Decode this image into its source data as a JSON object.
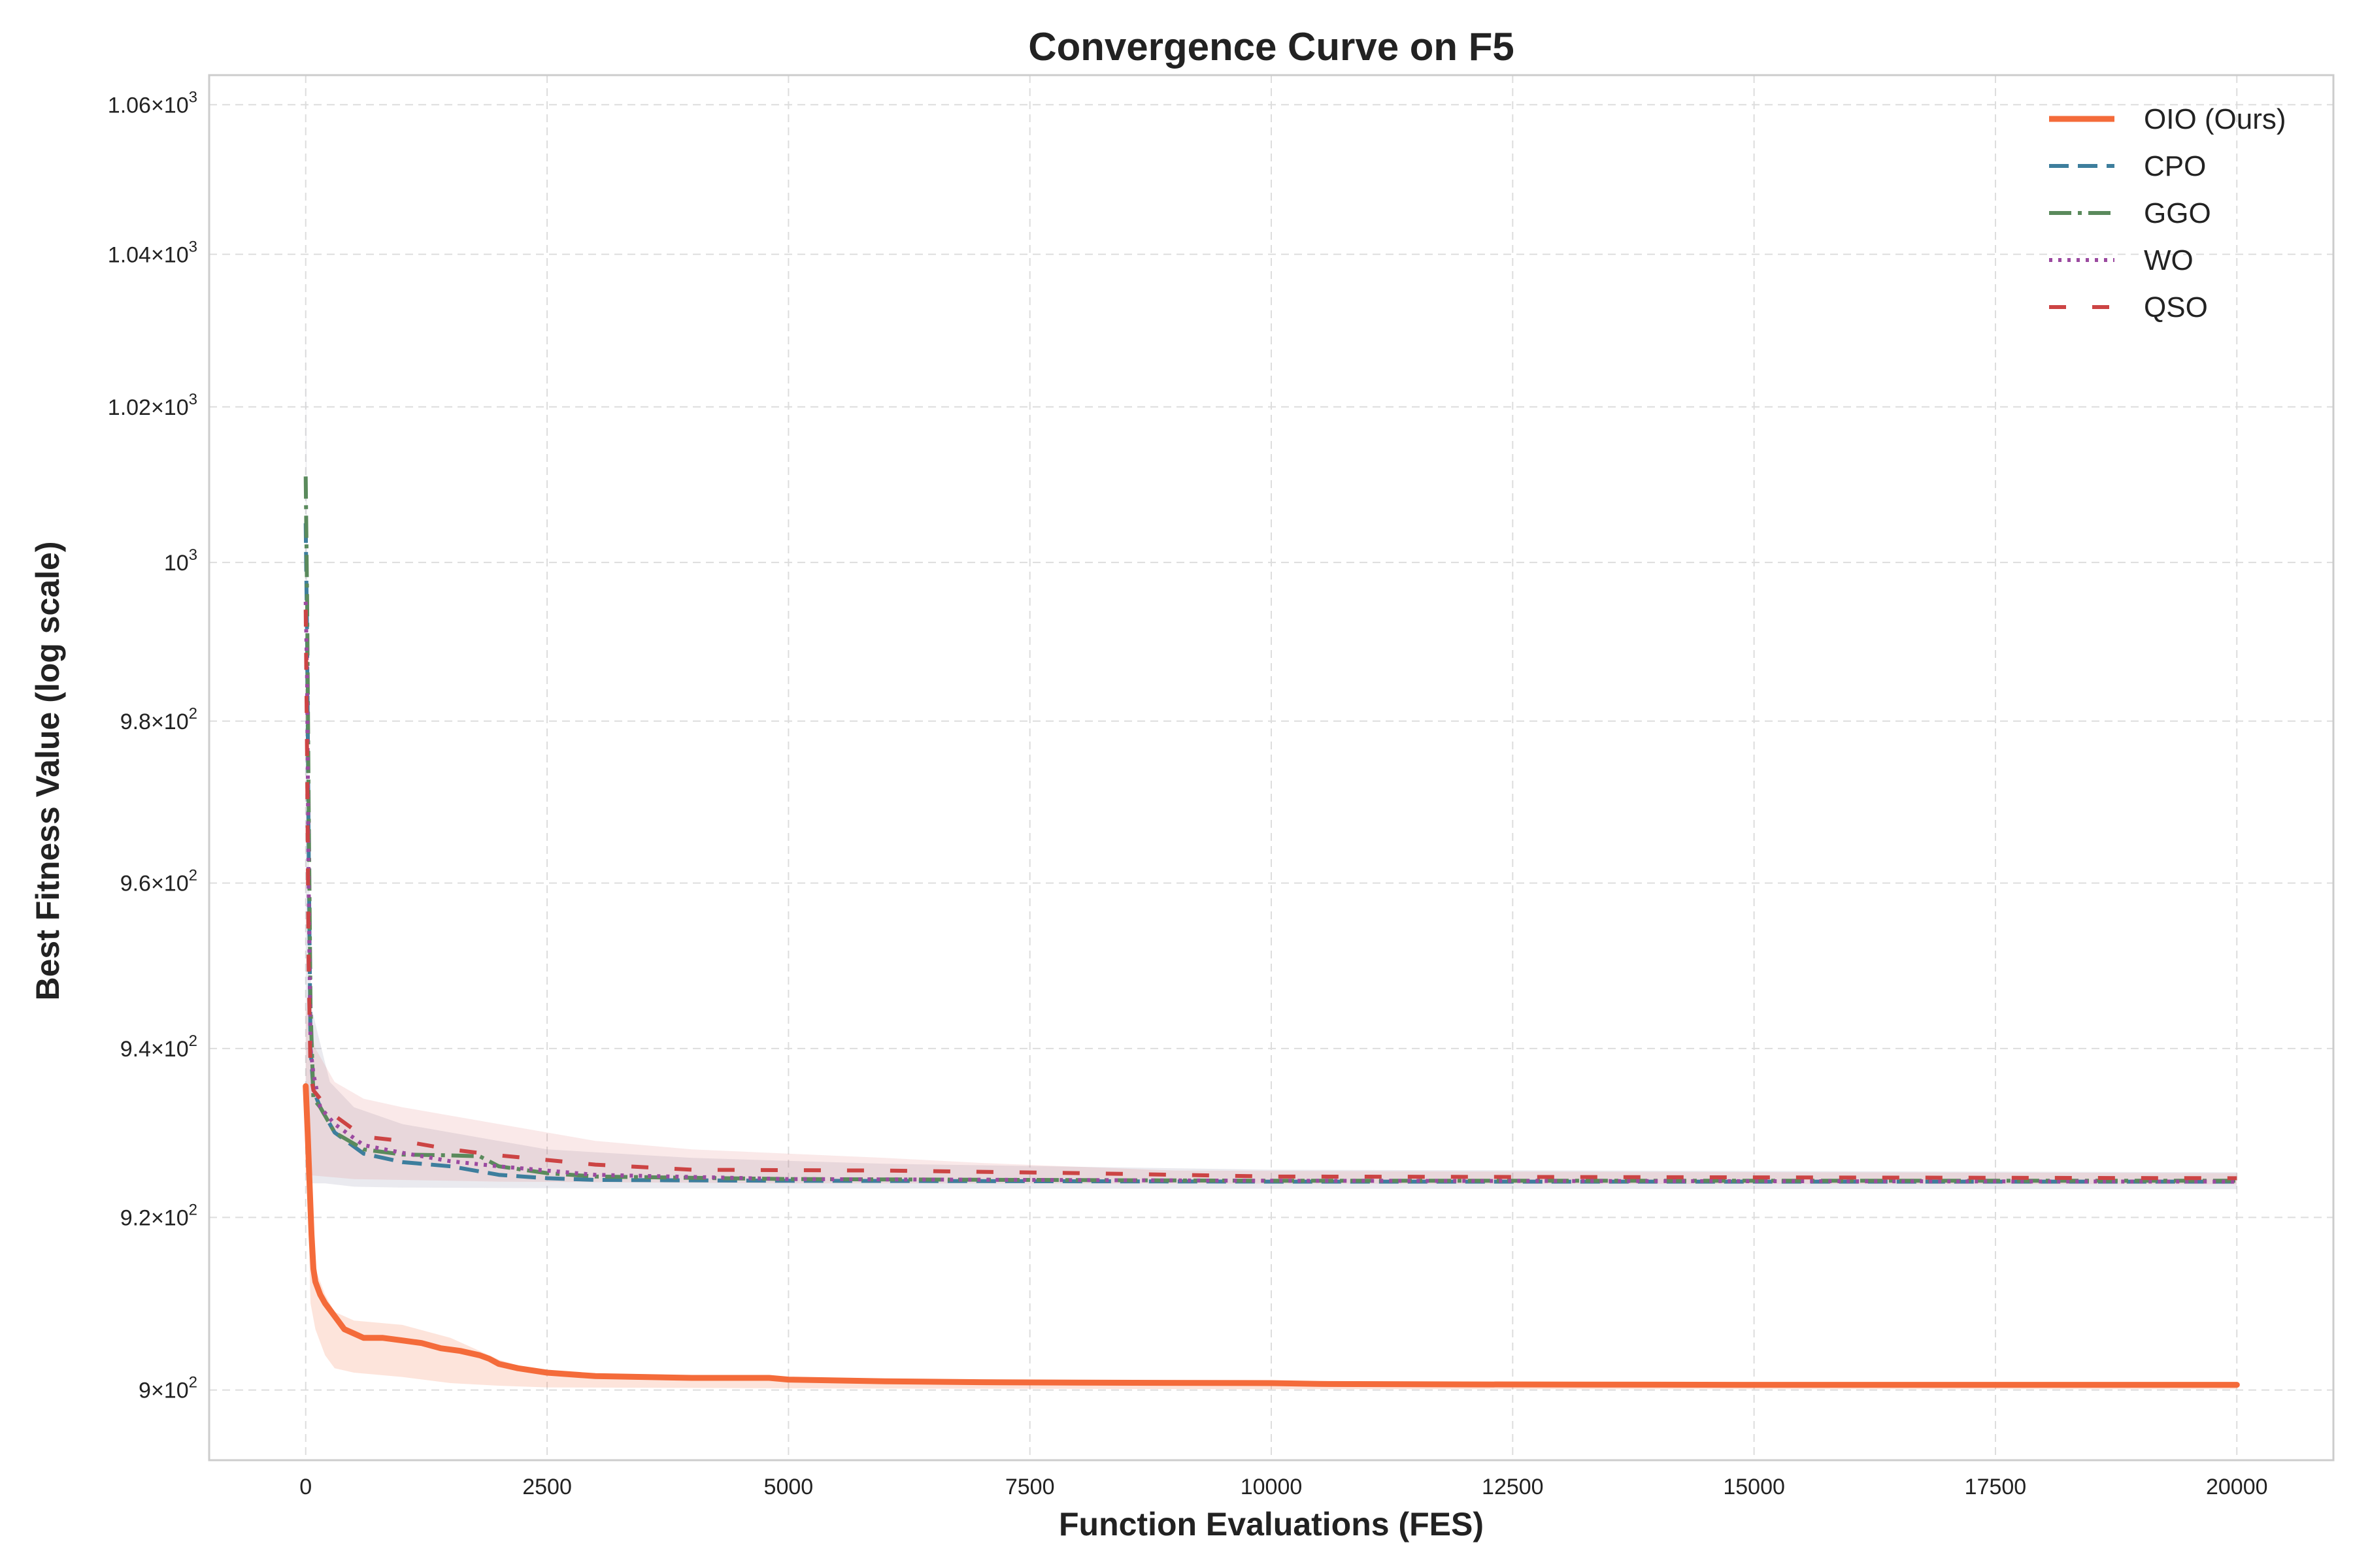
{
  "chart_data": {
    "type": "line",
    "title": "Convergence Curve on F5",
    "xlabel": "Function Evaluations (FES)",
    "ylabel": "Best Fitness Value (log scale)",
    "y_scale": "log",
    "xlim": [
      -1000,
      21000
    ],
    "ylim": [
      892,
      1064
    ],
    "grid": true,
    "legend_position": "top-right",
    "x_ticks": [
      0,
      2500,
      5000,
      7500,
      10000,
      12500,
      15000,
      17500,
      20000
    ],
    "x_tick_labels": [
      "0",
      "2500",
      "5000",
      "7500",
      "10000",
      "12500",
      "15000",
      "17500",
      "20000"
    ],
    "y_ticks": [
      900,
      920,
      940,
      960,
      980,
      1000,
      1020,
      1040,
      1060
    ],
    "y_tick_labels": [
      {
        "mantissa": "9×10",
        "exp": "2"
      },
      {
        "mantissa": "9.2×10",
        "exp": "2"
      },
      {
        "mantissa": "9.4×10",
        "exp": "2"
      },
      {
        "mantissa": "9.6×10",
        "exp": "2"
      },
      {
        "mantissa": "9.8×10",
        "exp": "2"
      },
      {
        "mantissa": "10",
        "exp": "3"
      },
      {
        "mantissa": "1.02×10",
        "exp": "3"
      },
      {
        "mantissa": "1.04×10",
        "exp": "3"
      },
      {
        "mantissa": "1.06×10",
        "exp": "3"
      }
    ],
    "series": [
      {
        "name": "OIO (Ours)",
        "color": "#f46b3a",
        "dash": "solid",
        "width": 9,
        "band_upper": [
          [
            0,
            934
          ],
          [
            50,
            920
          ],
          [
            100,
            914
          ],
          [
            200,
            911
          ],
          [
            300,
            909
          ],
          [
            500,
            908
          ],
          [
            1000,
            907.5
          ],
          [
            1500,
            906
          ],
          [
            2000,
            903.5
          ],
          [
            2500,
            901.8
          ],
          [
            3000,
            901.5
          ],
          [
            4000,
            901.5
          ],
          [
            5000,
            901.2
          ],
          [
            6000,
            901
          ],
          [
            8000,
            900.8
          ],
          [
            10000,
            900.7
          ],
          [
            20000,
            900.6
          ]
        ],
        "band_lower": [
          [
            0,
            930
          ],
          [
            50,
            910
          ],
          [
            100,
            907
          ],
          [
            200,
            904
          ],
          [
            300,
            902.5
          ],
          [
            500,
            902
          ],
          [
            1000,
            901.5
          ],
          [
            1500,
            900.8
          ],
          [
            2000,
            900.5
          ],
          [
            2500,
            900.3
          ],
          [
            5000,
            900.2
          ],
          [
            10000,
            900.1
          ],
          [
            20000,
            900.1
          ]
        ],
        "points": [
          [
            0,
            935.5
          ],
          [
            20,
            930
          ],
          [
            40,
            924
          ],
          [
            60,
            918
          ],
          [
            80,
            914
          ],
          [
            100,
            912.5
          ],
          [
            150,
            911
          ],
          [
            200,
            910
          ],
          [
            300,
            908.5
          ],
          [
            400,
            907
          ],
          [
            500,
            906.5
          ],
          [
            600,
            906
          ],
          [
            800,
            906
          ],
          [
            1000,
            905.7
          ],
          [
            1200,
            905.4
          ],
          [
            1400,
            904.8
          ],
          [
            1600,
            904.5
          ],
          [
            1800,
            904
          ],
          [
            1900,
            903.6
          ],
          [
            2000,
            903
          ],
          [
            2200,
            902.5
          ],
          [
            2500,
            902
          ],
          [
            3000,
            901.6
          ],
          [
            4000,
            901.4
          ],
          [
            4800,
            901.4
          ],
          [
            5000,
            901.2
          ],
          [
            6000,
            901
          ],
          [
            7000,
            900.9
          ],
          [
            8000,
            900.85
          ],
          [
            10000,
            900.8
          ],
          [
            10500,
            900.7
          ],
          [
            12000,
            900.65
          ],
          [
            15000,
            900.6
          ],
          [
            20000,
            900.6
          ]
        ]
      },
      {
        "name": "CPO",
        "color": "#3d7e9d",
        "dash": "30,14",
        "width": 6,
        "points": [
          [
            0,
            1005
          ],
          [
            15,
            990
          ],
          [
            30,
            965
          ],
          [
            50,
            940
          ],
          [
            80,
            935
          ],
          [
            150,
            933
          ],
          [
            300,
            930
          ],
          [
            600,
            927.5
          ],
          [
            1000,
            926.5
          ],
          [
            1500,
            926
          ],
          [
            2000,
            925
          ],
          [
            2500,
            924.6
          ],
          [
            3000,
            924.4
          ],
          [
            5000,
            924.3
          ],
          [
            10000,
            924.2
          ],
          [
            20000,
            924.2
          ]
        ]
      },
      {
        "name": "GGO",
        "color": "#5a8a5c",
        "dash": "34,10,6,10",
        "width": 6,
        "points": [
          [
            0,
            1011
          ],
          [
            15,
            995
          ],
          [
            30,
            970
          ],
          [
            50,
            945
          ],
          [
            80,
            934
          ],
          [
            150,
            933
          ],
          [
            300,
            930
          ],
          [
            600,
            928
          ],
          [
            1000,
            927.4
          ],
          [
            1500,
            927.3
          ],
          [
            1800,
            927.2
          ],
          [
            2000,
            926
          ],
          [
            2500,
            925.2
          ],
          [
            3000,
            924.8
          ],
          [
            5000,
            924.5
          ],
          [
            7500,
            924.4
          ],
          [
            10000,
            924.3
          ],
          [
            20000,
            924.3
          ]
        ]
      },
      {
        "name": "WO",
        "color": "#9b4aa0",
        "dash": "5,9",
        "width": 6,
        "points": [
          [
            0,
            995
          ],
          [
            15,
            985
          ],
          [
            30,
            960
          ],
          [
            50,
            940
          ],
          [
            80,
            937
          ],
          [
            150,
            933
          ],
          [
            300,
            931
          ],
          [
            600,
            928.5
          ],
          [
            1000,
            927.6
          ],
          [
            1500,
            926.6
          ],
          [
            2000,
            926
          ],
          [
            3000,
            925
          ],
          [
            5000,
            924.5
          ],
          [
            10000,
            924.3
          ],
          [
            20000,
            924.2
          ]
        ]
      },
      {
        "name": "QSO",
        "color": "#cc4444",
        "dash": "26,40",
        "width": 6,
        "points": [
          [
            0,
            994
          ],
          [
            15,
            975
          ],
          [
            30,
            950
          ],
          [
            50,
            937
          ],
          [
            80,
            935
          ],
          [
            150,
            934
          ],
          [
            300,
            932
          ],
          [
            600,
            929.5
          ],
          [
            1000,
            929
          ],
          [
            1500,
            928
          ],
          [
            2000,
            927.3
          ],
          [
            3000,
            926.2
          ],
          [
            4000,
            925.6
          ],
          [
            6000,
            925.5
          ],
          [
            8000,
            925.2
          ],
          [
            10000,
            924.8
          ],
          [
            20000,
            924.6
          ]
        ]
      }
    ],
    "gray_band": {
      "color": "#7e7e9a",
      "upper": [
        [
          0,
          1032
        ],
        [
          15,
          1000
        ],
        [
          30,
          965
        ],
        [
          60,
          945
        ],
        [
          120,
          942
        ],
        [
          250,
          936
        ],
        [
          500,
          933
        ],
        [
          1000,
          931
        ],
        [
          1500,
          930
        ],
        [
          2500,
          928
        ],
        [
          4000,
          927
        ],
        [
          6000,
          926.3
        ],
        [
          10000,
          925.6
        ],
        [
          20000,
          925.3
        ]
      ],
      "lower": [
        [
          0,
          936
        ],
        [
          20,
          925
        ],
        [
          60,
          924
        ],
        [
          200,
          924
        ],
        [
          500,
          923.6
        ],
        [
          1000,
          923.5
        ],
        [
          3000,
          923.4
        ],
        [
          20000,
          923.3
        ]
      ]
    },
    "red_band": {
      "color": "#dd7777",
      "upper": [
        [
          0,
          945
        ],
        [
          100,
          940
        ],
        [
          300,
          936
        ],
        [
          600,
          934
        ],
        [
          1000,
          933
        ],
        [
          2000,
          931
        ],
        [
          2500,
          930
        ],
        [
          3000,
          929
        ],
        [
          4000,
          928
        ],
        [
          6000,
          927
        ],
        [
          7000,
          926.4
        ],
        [
          9000,
          925.5
        ],
        [
          12000,
          925.4
        ],
        [
          20000,
          925.2
        ]
      ],
      "lower": [
        [
          0,
          925
        ],
        [
          500,
          924.5
        ],
        [
          2000,
          924.2
        ],
        [
          5000,
          924
        ],
        [
          20000,
          923.9
        ]
      ]
    }
  }
}
